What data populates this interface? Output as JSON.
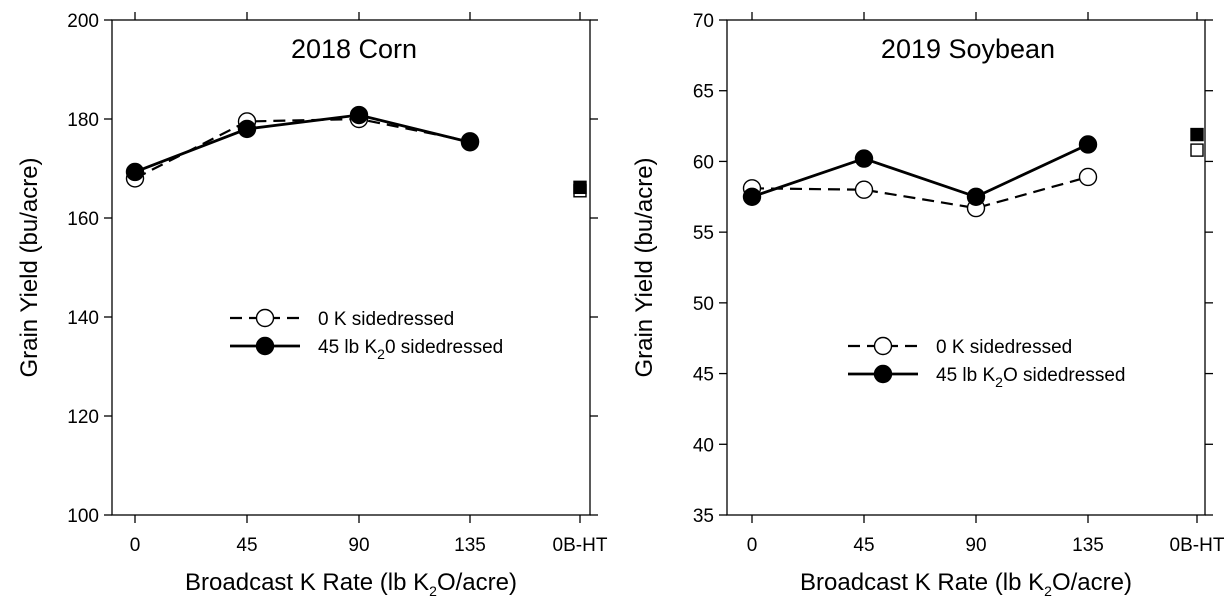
{
  "chart_data": [
    {
      "type": "line",
      "title": "2018 Corn",
      "xlabel": "Broadcast K Rate (lb K₂O/acre)",
      "xlabel_parts": [
        "Broadcast K Rate (lb K",
        "2",
        "O/acre)"
      ],
      "ylabel": "Grain Yield (bu/acre)",
      "ylim": [
        100,
        200
      ],
      "yticks": [
        100,
        120,
        140,
        160,
        180,
        200
      ],
      "xtick_labels": [
        "0",
        "45",
        "90",
        "135",
        "0B-HT"
      ],
      "grid": false,
      "legend_position": "center",
      "series": [
        {
          "name": "0 K sidedressed",
          "name_parts": [
            "0 K sidedressed"
          ],
          "marker": "open-circle",
          "line": "dashed",
          "x": [
            "0",
            "45",
            "90",
            "135"
          ],
          "values": [
            168,
            179.5,
            180,
            175.5
          ],
          "extra": {
            "x": "0B-HT",
            "value": 165.5,
            "marker": "open-square"
          }
        },
        {
          "name": "45 lb K₂0 sidedressed",
          "name_parts": [
            "45 lb K",
            "2",
            "0 sidedressed"
          ],
          "marker": "filled-circle",
          "line": "solid",
          "x": [
            "0",
            "45",
            "90",
            "135"
          ],
          "values": [
            169.3,
            178,
            180.8,
            175.3
          ],
          "extra": {
            "x": "0B-HT",
            "value": 166.2,
            "marker": "filled-square"
          }
        }
      ]
    },
    {
      "type": "line",
      "title": "2019 Soybean",
      "xlabel": "Broadcast K Rate (lb K₂O/acre)",
      "xlabel_parts": [
        "Broadcast K Rate (lb K",
        "2",
        "O/acre)"
      ],
      "ylabel": "Grain Yield (bu/acre)",
      "ylim": [
        35,
        70
      ],
      "yticks": [
        35,
        40,
        45,
        50,
        55,
        60,
        65,
        70
      ],
      "xtick_labels": [
        "0",
        "45",
        "90",
        "135",
        "0B-HT"
      ],
      "grid": false,
      "legend_position": "center",
      "series": [
        {
          "name": "0 K sidedressed",
          "name_parts": [
            "0 K sidedressed"
          ],
          "marker": "open-circle",
          "line": "dashed",
          "x": [
            "0",
            "45",
            "90",
            "135"
          ],
          "values": [
            58.1,
            58,
            56.7,
            58.9
          ],
          "extra": {
            "x": "0B-HT",
            "value": 60.8,
            "marker": "open-square"
          }
        },
        {
          "name": "45 lb K₂O sidedressed",
          "name_parts": [
            "45 lb K",
            "2",
            "O sidedressed"
          ],
          "marker": "filled-circle",
          "line": "solid",
          "x": [
            "0",
            "45",
            "90",
            "135"
          ],
          "values": [
            57.5,
            60.2,
            57.5,
            61.2
          ],
          "extra": {
            "x": "0B-HT",
            "value": 61.9,
            "marker": "filled-square"
          }
        }
      ]
    }
  ]
}
